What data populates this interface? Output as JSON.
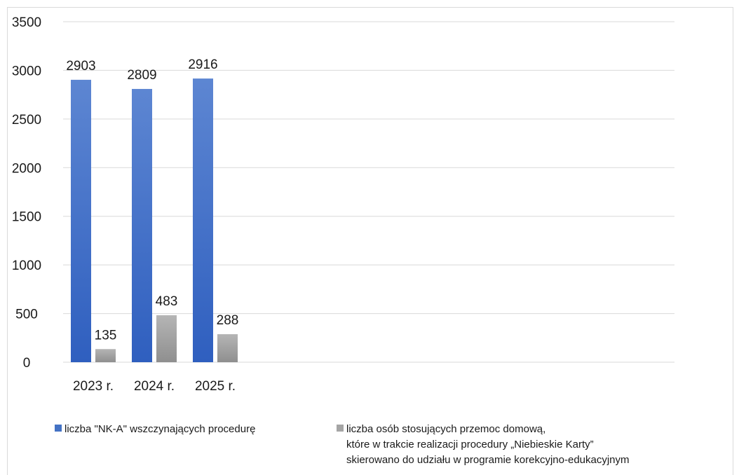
{
  "chart_data": {
    "type": "bar",
    "title": "",
    "xlabel": "",
    "ylabel": "",
    "categories": [
      "2023 r.",
      "2024 r.",
      "2025 r."
    ],
    "ylim": [
      0,
      3500
    ],
    "yticks": [
      0,
      500,
      1000,
      1500,
      2000,
      2500,
      3000,
      3500
    ],
    "grid": true,
    "legend_position": "bottom",
    "series": [
      {
        "name": "liczba \"NK-A\" wszczynających procedurę",
        "name_lines": [
          "liczba \"NK-A\" wszczynających procedurę"
        ],
        "values": [
          2903,
          2809,
          2916
        ],
        "color": "#4472c4"
      },
      {
        "name": "liczba osób stosujących przemoc domową, które w trakcie realizacji procedury „Niebieskie Karty” skierowano do udziału w programie korekcyjno-edukacyjnym",
        "name_lines": [
          "liczba osób stosujących przemoc domową,",
          "które w trakcie realizacji procedury „Niebieskie Karty”",
          "skierowano do udziału w programie korekcyjno-edukacyjnym"
        ],
        "values": [
          135,
          483,
          288
        ],
        "color": "#a5a5a5"
      }
    ]
  }
}
